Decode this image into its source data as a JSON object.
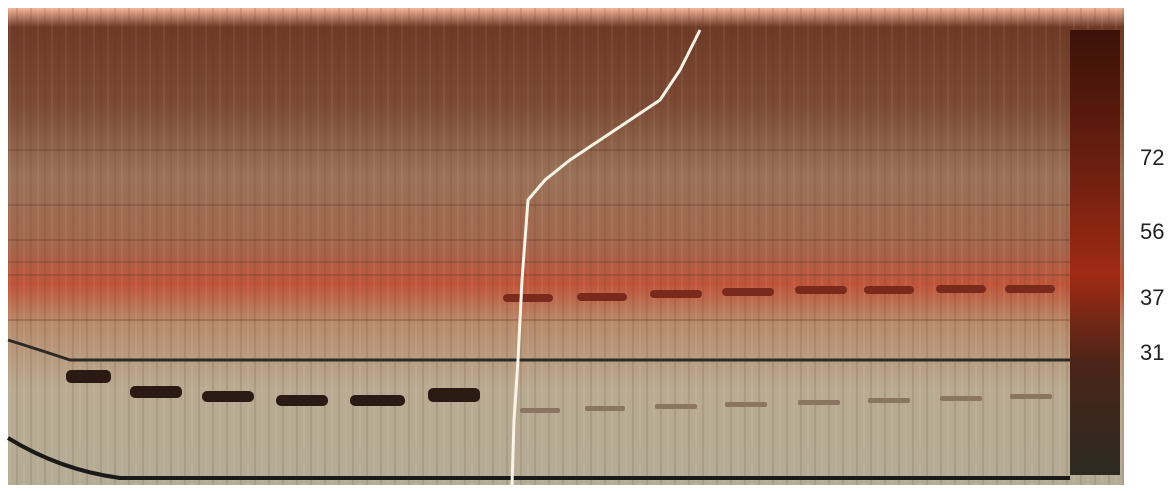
{
  "markers": [
    "72",
    "56",
    "37",
    "31"
  ]
}
